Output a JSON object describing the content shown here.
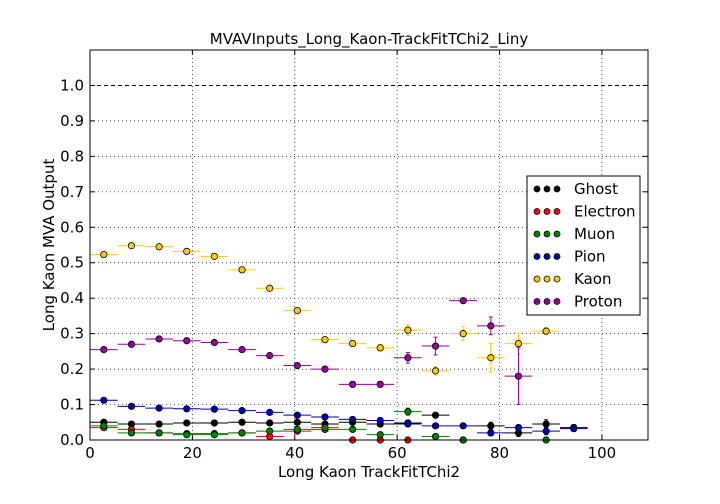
{
  "chart_data": {
    "type": "scatter",
    "title": "MVAVInputs_Long_Kaon-TrackFitTChi2_Liny",
    "xlabel": "Long Kaon TrackFitTChi2",
    "ylabel": "Long Kaon MVA Output",
    "xlim": [
      0,
      109
    ],
    "ylim": [
      0,
      1.1
    ],
    "xticks": [
      0,
      20,
      40,
      60,
      80,
      100
    ],
    "xtick_labels": [
      "0",
      "20",
      "40",
      "60",
      "80",
      "100"
    ],
    "yticks": [
      0,
      0.1,
      0.2,
      0.3,
      0.4,
      0.5,
      0.6,
      0.7,
      0.8,
      0.9,
      1.0
    ],
    "ytick_labels": [
      "0.0",
      "0.1",
      "0.2",
      "0.3",
      "0.4",
      "0.5",
      "0.6",
      "0.7",
      "0.8",
      "0.9",
      "1.0"
    ],
    "reference_line": {
      "y": 1.0,
      "style": "dashed"
    },
    "grid": true,
    "legend_position": "right",
    "bin_half_width": 2.7,
    "series": [
      {
        "name": "Ghost",
        "color": "#000000",
        "x": [
          2.7,
          8.1,
          13.5,
          18.9,
          24.3,
          29.7,
          35.1,
          40.5,
          45.9,
          51.3,
          56.7,
          62.1,
          67.5,
          72.9,
          78.3,
          83.7,
          89.1,
          94.5
        ],
        "y": [
          0.05,
          0.045,
          0.045,
          0.048,
          0.048,
          0.05,
          0.048,
          0.05,
          0.045,
          0.05,
          0.045,
          0.048,
          0.07,
          0.0,
          0.04,
          0.02,
          0.045,
          0.035
        ],
        "yerr": [
          0.004,
          0.004,
          0.004,
          0.004,
          0.005,
          0.005,
          0.005,
          0.006,
          0.006,
          0.006,
          0.007,
          0.008,
          0.008,
          0.0,
          0.01,
          0.01,
          0.012,
          0.008
        ]
      },
      {
        "name": "Electron",
        "color": "#ff0000",
        "x": [
          2.7,
          8.1,
          13.5,
          18.9,
          24.3,
          29.7,
          35.1,
          40.5,
          45.9,
          51.3,
          56.7,
          62.1
        ],
        "y": [
          0.035,
          0.03,
          0.02,
          0.018,
          0.018,
          0.02,
          0.01,
          0.025,
          0.03,
          0.0,
          0.0,
          0.0
        ],
        "yerr": [
          0.004,
          0.004,
          0.004,
          0.004,
          0.004,
          0.004,
          0.004,
          0.005,
          0.006,
          0.0,
          0.0,
          0.0
        ]
      },
      {
        "name": "Muon",
        "color": "#008000",
        "x": [
          2.7,
          8.1,
          13.5,
          18.9,
          24.3,
          29.7,
          35.1,
          40.5,
          45.9,
          51.3,
          56.7,
          62.1,
          67.5,
          72.9,
          89.1
        ],
        "y": [
          0.04,
          0.02,
          0.02,
          0.015,
          0.015,
          0.02,
          0.025,
          0.03,
          0.035,
          0.03,
          0.015,
          0.08,
          0.01,
          0.0,
          0.0
        ],
        "yerr": [
          0.004,
          0.004,
          0.004,
          0.004,
          0.004,
          0.004,
          0.005,
          0.005,
          0.006,
          0.006,
          0.006,
          0.01,
          0.006,
          0.0,
          0.0
        ]
      },
      {
        "name": "Pion",
        "color": "#0000b3",
        "x": [
          2.7,
          8.1,
          13.5,
          18.9,
          24.3,
          29.7,
          35.1,
          40.5,
          45.9,
          51.3,
          56.7,
          62.1,
          67.5,
          72.9,
          78.3,
          83.7,
          89.1,
          94.5
        ],
        "y": [
          0.112,
          0.095,
          0.09,
          0.088,
          0.087,
          0.083,
          0.078,
          0.07,
          0.065,
          0.058,
          0.055,
          0.045,
          0.04,
          0.04,
          0.02,
          0.035,
          0.025,
          0.032
        ],
        "yerr": [
          0.003,
          0.003,
          0.003,
          0.003,
          0.003,
          0.003,
          0.003,
          0.004,
          0.004,
          0.004,
          0.005,
          0.005,
          0.006,
          0.006,
          0.008,
          0.008,
          0.01,
          0.008
        ]
      },
      {
        "name": "Kaon",
        "color": "#ffcc00",
        "x": [
          2.7,
          8.1,
          13.5,
          18.9,
          24.3,
          29.7,
          35.1,
          40.5,
          45.9,
          51.3,
          56.7,
          62.1,
          67.5,
          72.9,
          78.3,
          83.7,
          89.1
        ],
        "y": [
          0.523,
          0.548,
          0.545,
          0.532,
          0.518,
          0.48,
          0.428,
          0.365,
          0.283,
          0.272,
          0.26,
          0.31,
          0.195,
          0.3,
          0.232,
          0.272,
          0.307
        ],
        "yerr": [
          0.004,
          0.004,
          0.004,
          0.004,
          0.005,
          0.005,
          0.006,
          0.007,
          0.008,
          0.008,
          0.009,
          0.015,
          0.012,
          0.02,
          0.04,
          0.03,
          0.01
        ]
      },
      {
        "name": "Proton",
        "color": "#990099",
        "x": [
          2.7,
          8.1,
          13.5,
          18.9,
          24.3,
          29.7,
          35.1,
          40.5,
          45.9,
          51.3,
          56.7,
          62.1,
          67.5,
          72.9,
          78.3,
          83.7
        ],
        "y": [
          0.255,
          0.27,
          0.285,
          0.28,
          0.275,
          0.255,
          0.238,
          0.21,
          0.2,
          0.157,
          0.157,
          0.232,
          0.265,
          0.393,
          0.322,
          0.18
        ],
        "yerr": [
          0.004,
          0.004,
          0.004,
          0.004,
          0.005,
          0.005,
          0.006,
          0.006,
          0.007,
          0.008,
          0.008,
          0.015,
          0.025,
          0.005,
          0.025,
          0.08
        ]
      }
    ]
  }
}
